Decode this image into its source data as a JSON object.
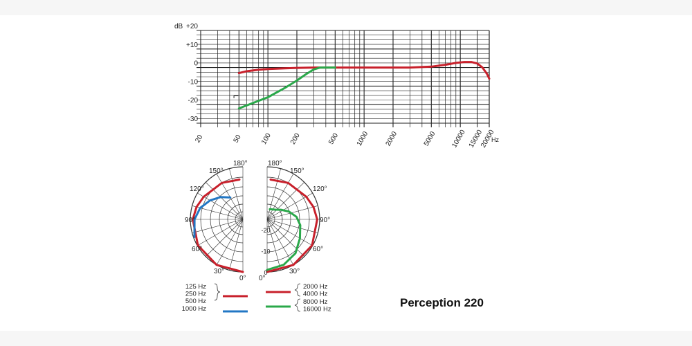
{
  "product_name": "Perception 220",
  "chart_data": [
    {
      "type": "line",
      "title": "",
      "xlabel": "Hz",
      "ylabel": "dB",
      "x_scale": "log",
      "xlim": [
        20,
        20000
      ],
      "ylim": [
        -30,
        20
      ],
      "x_ticks": [
        "20",
        "50",
        "100",
        "200",
        "500",
        "1000",
        "2000",
        "5000",
        "10000",
        "15000",
        "20000"
      ],
      "y_ticks": [
        "+20",
        "+10",
        "0",
        "-10",
        "-20",
        "-30"
      ],
      "grid": true,
      "filter_symbol": "⌐",
      "series": [
        {
          "color": "#c8202b",
          "points": [
            [
              50,
              -3
            ],
            [
              60,
              -2
            ],
            [
              80,
              -1.2
            ],
            [
              100,
              -0.8
            ],
            [
              150,
              -0.4
            ],
            [
              200,
              -0.2
            ],
            [
              300,
              0
            ],
            [
              500,
              0
            ],
            [
              1000,
              0
            ],
            [
              2000,
              0
            ],
            [
              3000,
              0
            ],
            [
              5000,
              0.5
            ],
            [
              7000,
              1.5
            ],
            [
              9000,
              2.5
            ],
            [
              11000,
              3
            ],
            [
              13000,
              3
            ],
            [
              15000,
              2.2
            ],
            [
              17000,
              0
            ],
            [
              19000,
              -3.5
            ],
            [
              20000,
              -6
            ]
          ]
        },
        {
          "color": "#2aa84a",
          "points": [
            [
              50,
              -22
            ],
            [
              100,
              -16
            ],
            [
              150,
              -11
            ],
            [
              200,
              -7
            ],
            [
              250,
              -3.5
            ],
            [
              300,
              -1
            ],
            [
              350,
              0
            ],
            [
              500,
              0
            ]
          ]
        }
      ]
    },
    {
      "type": "polar",
      "title": "",
      "angle_labels_left": [
        "180°",
        "150°",
        "120°",
        "90°",
        "60°",
        "30°",
        "0°"
      ],
      "angle_labels_right": [
        "180°",
        "150°",
        "120°",
        "90°",
        "60°",
        "30°",
        "0°"
      ],
      "radial_labels": [
        "-20",
        "-10",
        "0"
      ],
      "rlim": [
        -25,
        0
      ],
      "legend_left": {
        "group_labels": [
          "125 Hz",
          "250 Hz",
          "500 Hz"
        ],
        "single_label": "1000 Hz",
        "group_color": "#c8202b",
        "single_color": "#2277c4"
      },
      "legend_right": {
        "group_top_labels": [
          "2000 Hz",
          "4000 Hz"
        ],
        "group_bottom_labels": [
          "8000 Hz",
          "16000 Hz"
        ],
        "top_color": "#c8202b",
        "bottom_color": "#2aa84a"
      },
      "series": [
        {
          "name": "",
          "side": "left",
          "color": "#c8202b",
          "points": [
            [
              0,
              0
            ],
            [
              30,
              0
            ],
            [
              60,
              -0.3
            ],
            [
              90,
              -1.2
            ],
            [
              105,
              -2.2
            ],
            [
              120,
              -3.5
            ],
            [
              150,
              -5
            ],
            [
              175,
              -6
            ]
          ]
        },
        {
          "name": "",
          "side": "left",
          "color": "#2277c4",
          "points": [
            [
              70,
              -0.5
            ],
            [
              90,
              -2
            ],
            [
              105,
              -4
            ],
            [
              120,
              -7
            ],
            [
              135,
              -10
            ],
            [
              150,
              -13
            ]
          ]
        },
        {
          "name": "",
          "side": "right",
          "color": "#c8202b",
          "points": [
            [
              0,
              0
            ],
            [
              30,
              0
            ],
            [
              60,
              -0.3
            ],
            [
              90,
              -1.2
            ],
            [
              105,
              -2.2
            ],
            [
              120,
              -3.5
            ],
            [
              150,
              -5
            ],
            [
              175,
              -6
            ]
          ]
        },
        {
          "name": "",
          "side": "right",
          "color": "#2aa84a",
          "points": [
            [
              0,
              -1
            ],
            [
              20,
              -2
            ],
            [
              40,
              -4
            ],
            [
              60,
              -7
            ],
            [
              80,
              -9
            ],
            [
              95,
              -11
            ],
            [
              110,
              -14
            ],
            [
              125,
              -17
            ],
            [
              140,
              -19
            ],
            [
              165,
              -20
            ]
          ]
        }
      ]
    }
  ]
}
